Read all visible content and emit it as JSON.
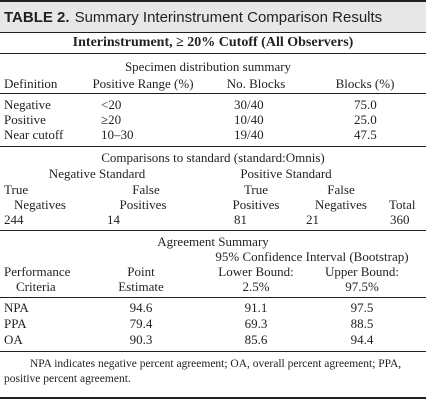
{
  "table": {
    "label": "TABLE 2.",
    "caption": "Summary Interinstrument Comparison Results"
  },
  "section1": {
    "heading": "Interinstrument, ≥ 20% Cutoff (All Observers)",
    "group_heading": "Specimen distribution summary",
    "columns": [
      "Definition",
      "Positive Range (%)",
      "No. Blocks",
      "Blocks (%)"
    ],
    "rows": [
      [
        "Negative",
        "<20",
        "30/40",
        "75.0"
      ],
      [
        "Positive",
        "≥20",
        "10/40",
        "25.0"
      ],
      [
        "Near cutoff",
        "10–30",
        "19/40",
        "47.5"
      ]
    ]
  },
  "section2": {
    "heading": "Comparisons to standard (standard:Omnis)",
    "negative_standard": "Negative Standard",
    "positive_standard": "Positive Standard",
    "col_line1": [
      "True",
      "False",
      "True",
      "False",
      ""
    ],
    "col_line2": [
      "Negatives",
      "Positives",
      "Positives",
      "Negatives",
      "Total"
    ],
    "values": [
      "244",
      "14",
      "81",
      "21",
      "360"
    ]
  },
  "section3": {
    "heading": "Agreement Summary",
    "ci_heading": "95% Confidence Interval (Bootstrap)",
    "col_line1": [
      "Performance",
      "Point",
      "Lower Bound:",
      "Upper Bound:"
    ],
    "col_line2": [
      "Criteria",
      "Estimate",
      "2.5%",
      "97.5%"
    ],
    "rows": [
      [
        "NPA",
        "94.6",
        "91.1",
        "97.5"
      ],
      [
        "PPA",
        "79.4",
        "69.3",
        "88.5"
      ],
      [
        "OA",
        "90.3",
        "85.6",
        "94.4"
      ]
    ]
  },
  "footnote": "NPA indicates negative percent agreement; OA, overall percent agreement; PPA, positive percent agreement."
}
